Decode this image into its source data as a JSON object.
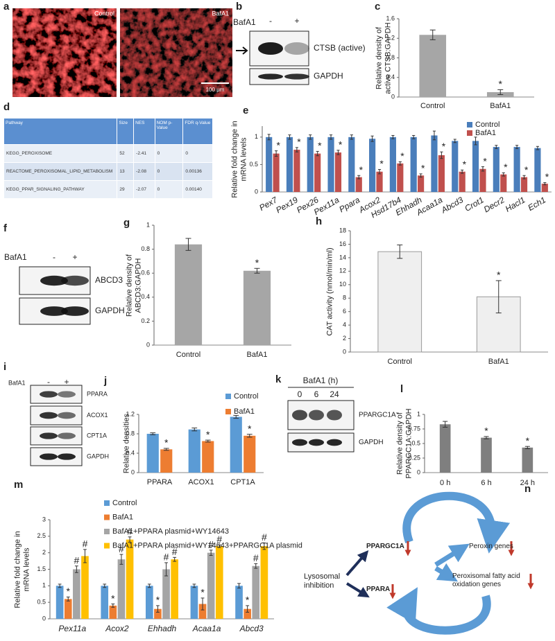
{
  "panel_a": {
    "label": "a",
    "images": [
      "Control",
      "BafA1"
    ],
    "scale_bar": "100 μm"
  },
  "panel_b": {
    "label": "b",
    "treatment": "BafA1",
    "lanes": [
      "-",
      "+"
    ],
    "bands": [
      "CTSB (active)",
      "GAPDH"
    ]
  },
  "panel_d": {
    "label": "d",
    "table": {
      "header": [
        "Pathway",
        "Size",
        "NES",
        "NOM p-Value",
        "FDR q-Value"
      ],
      "rows": [
        [
          "KEGG_PEROXISOME",
          "52",
          "-2.41",
          "0",
          "0"
        ],
        [
          "REACTOME_PEROXISOMAL_LIPID_METABOLISM",
          "13",
          "-2.08",
          "0",
          "0.00136"
        ],
        [
          "KEGG_PPAR_SIGNALING_PATHWAY",
          "29",
          "-2.07",
          "0",
          "0.00140"
        ]
      ]
    }
  },
  "panel_f": {
    "label": "f",
    "treatment": "BafA1",
    "lanes": [
      "-",
      "+"
    ],
    "bands": [
      "ABCD3",
      "GAPDH"
    ]
  },
  "panel_i": {
    "label": "i",
    "treatment": "BafA1",
    "lanes": [
      "-",
      "+"
    ],
    "bands": [
      "PPARA",
      "ACOX1",
      "CPT1A",
      "GAPDH"
    ]
  },
  "panel_k": {
    "label": "k",
    "treatment": "BafA1 (h)",
    "lanes": [
      "0",
      "6",
      "24"
    ],
    "bands": [
      "PPARGC1A",
      "GAPDH"
    ]
  },
  "panel_n": {
    "label": "n",
    "nodes": [
      "Lysosomal inhibition",
      "PPARGC1A",
      "PPARA",
      "Peroxin genes",
      "Peroxisomal fatty acid oxidation genes"
    ]
  },
  "chart_data": [
    {
      "label": "c",
      "type": "bar",
      "y_label": "Relative density of active CTSB:GAPDH",
      "categories": [
        "Control",
        "BafA1"
      ],
      "values": [
        1.27,
        0.1
      ],
      "errors": [
        0.1,
        0.05
      ],
      "markers": [
        null,
        "*"
      ],
      "color": "#a6a6a6",
      "ylim": [
        0,
        1.6
      ],
      "yticks": [
        0,
        0.4,
        0.8,
        1.2,
        1.6
      ]
    },
    {
      "label": "e",
      "type": "bar",
      "y_label": "Relative fold change in mRNA levels",
      "categories": [
        "Pex7",
        "Pex19",
        "Pex26",
        "Pex11a",
        "Ppara",
        "Acox2",
        "Hsd17b4",
        "Ehhadh",
        "Acaa1a",
        "Abcd3",
        "Crot1",
        "Decr2",
        "Hacl1",
        "Ech1"
      ],
      "series": [
        {
          "name": "Control",
          "color": "#4a7ebb",
          "values": [
            1,
            1,
            1,
            1,
            1,
            0.97,
            1,
            1,
            1.03,
            0.93,
            0.93,
            0.82,
            0.82,
            0.8
          ],
          "errors": [
            0.05,
            0.04,
            0.04,
            0.04,
            0.04,
            0.05,
            0.03,
            0.03,
            0.08,
            0.03,
            0.07,
            0.03,
            0.03,
            0.03
          ]
        },
        {
          "name": "BafA1",
          "color": "#c0504d",
          "values": [
            0.7,
            0.77,
            0.7,
            0.72,
            0.27,
            0.37,
            0.52,
            0.3,
            0.67,
            0.37,
            0.42,
            0.32,
            0.27,
            0.15
          ],
          "errors": [
            0.05,
            0.04,
            0.04,
            0.04,
            0.03,
            0.04,
            0.03,
            0.03,
            0.06,
            0.03,
            0.04,
            0.03,
            0.03,
            0.02
          ],
          "markers": [
            "*",
            "*",
            "*",
            "*",
            "*",
            "*",
            "*",
            "*",
            "*",
            "*",
            "*",
            "*",
            "*",
            "*"
          ]
        }
      ],
      "ylim": [
        0,
        1.2
      ],
      "yticks": [
        0,
        0.5,
        1
      ],
      "legend": "top-right"
    },
    {
      "label": "g",
      "type": "bar",
      "y_label": "Relative density of ABCD3:GAPDH",
      "categories": [
        "Control",
        "BafA1"
      ],
      "values": [
        0.84,
        0.62
      ],
      "errors": [
        0.05,
        0.02
      ],
      "markers": [
        null,
        "*"
      ],
      "color": "#a6a6a6",
      "ylim": [
        0,
        1
      ],
      "yticks": [
        0,
        0.2,
        0.4,
        0.6,
        0.8,
        1
      ]
    },
    {
      "label": "h",
      "type": "bar",
      "y_label": "CAT activity (nmol/min/ml)",
      "categories": [
        "Control",
        "BafA1"
      ],
      "values": [
        14.9,
        8.2
      ],
      "errors": [
        1,
        2.4
      ],
      "markers": [
        null,
        "*"
      ],
      "color": "#efefef",
      "ylim": [
        0,
        18
      ],
      "yticks": [
        0,
        2,
        4,
        6,
        8,
        10,
        12,
        14,
        16,
        18
      ]
    },
    {
      "label": "j",
      "type": "bar",
      "y_label": "Relative densities",
      "categories": [
        "PPARA",
        "ACOX1",
        "CPT1A"
      ],
      "series": [
        {
          "name": "Control",
          "color": "#5b9bd5",
          "values": [
            0.8,
            0.89,
            1.15
          ],
          "errors": [
            0.02,
            0.03,
            0.03
          ]
        },
        {
          "name": "BafA1",
          "color": "#ed7d31",
          "values": [
            0.48,
            0.65,
            0.76
          ],
          "errors": [
            0.02,
            0.02,
            0.03
          ],
          "markers": [
            "*",
            "*",
            "*"
          ]
        }
      ],
      "ylim": [
        0,
        1.2
      ],
      "yticks": [
        0,
        0.4,
        0.8,
        1.2
      ],
      "legend": "top-right"
    },
    {
      "label": "l",
      "type": "bar",
      "y_label": "Relative density of PPARGC1A:GAPDH",
      "categories": [
        "0 h",
        "6 h",
        "24 h"
      ],
      "values": [
        0.83,
        0.6,
        0.43
      ],
      "errors": [
        0.05,
        0.02,
        0.02
      ],
      "markers": [
        null,
        "*",
        "*"
      ],
      "color": "#7f7f7f",
      "ylim": [
        0,
        1
      ],
      "yticks": [
        0,
        0.25,
        0.5,
        0.75,
        1
      ]
    },
    {
      "label": "m",
      "type": "bar",
      "y_label": "Relative fold change in mRNA levels",
      "categories": [
        "Pex11a",
        "Acox2",
        "Ehhadh",
        "Acaa1a",
        "Abcd3"
      ],
      "series": [
        {
          "name": "Control",
          "color": "#5b9bd5",
          "values": [
            1,
            1,
            1,
            1,
            1
          ],
          "errors": [
            0.05,
            0.05,
            0.05,
            0.05,
            0.07
          ]
        },
        {
          "name": "BafA1",
          "color": "#ed7d31",
          "values": [
            0.6,
            0.4,
            0.3,
            0.45,
            0.3
          ],
          "errors": [
            0.06,
            0.05,
            0.1,
            0.18,
            0.1
          ],
          "markers": [
            "*",
            "*",
            "*",
            "*",
            "*"
          ]
        },
        {
          "name": "BafA1+PPARA plasmid+WY14643",
          "color": "#a5a5a5",
          "values": [
            1.5,
            1.8,
            1.5,
            2,
            1.6
          ],
          "errors": [
            0.1,
            0.15,
            0.2,
            0.08,
            0.07
          ],
          "markers": [
            "#",
            "#",
            "#",
            "#",
            "#"
          ]
        },
        {
          "name": "BafA1+PPARA plasmid+WY14643+PPARGC1A plasmid",
          "color": "#ffc000",
          "values": [
            1.9,
            2.4,
            1.8,
            2.2,
            2.2
          ],
          "errors": [
            0.2,
            0.08,
            0.06,
            0.04,
            0.1
          ],
          "markers": [
            "#",
            "#",
            "#",
            "#",
            "#"
          ]
        }
      ],
      "ylim": [
        0,
        3
      ],
      "yticks": [
        0,
        0.5,
        1,
        1.5,
        2,
        2.5,
        3
      ],
      "legend": "top-left"
    }
  ]
}
